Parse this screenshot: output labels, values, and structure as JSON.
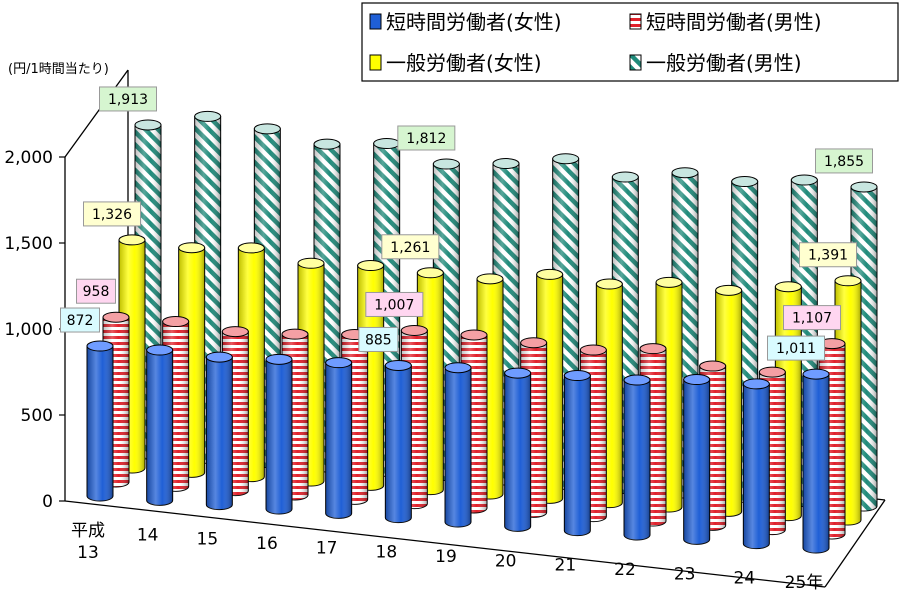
{
  "chart_data": {
    "type": "bar",
    "style": "3d-cylinder",
    "unit_label": "(円/1時間当たり)",
    "categories": [
      "平成\n13",
      "14",
      "15",
      "16",
      "17",
      "18",
      "19",
      "20",
      "21",
      "22",
      "23",
      "24",
      "25年"
    ],
    "ylim": [
      0,
      2000
    ],
    "yticks": [
      0,
      500,
      1000,
      1500,
      2000
    ],
    "ytick_labels": [
      "0",
      "500",
      "1,000",
      "1,500",
      "2,000"
    ],
    "grid": false,
    "legend_position": "top-right",
    "series": [
      {
        "name": "短時間労働者(女性)",
        "color": "#1f5fd6",
        "pattern": "solid",
        "values": [
          872,
          874,
          858,
          870,
          876,
          885,
          897,
          891,
          902,
          901,
          929,
          929,
          1011
        ]
      },
      {
        "name": "短時間労働者(男性)",
        "color": "#e0202a",
        "pattern": "horizontal-stripes",
        "values": [
          958,
          958,
          925,
          935,
          958,
          1007,
          1006,
          986,
          969,
          1002,
          926,
          916,
          1107
        ]
      },
      {
        "name": "一般労働者(女性)",
        "color": "#ffff00",
        "pattern": "solid",
        "values": [
          1326,
          1306,
          1330,
          1266,
          1278,
          1261,
          1251,
          1302,
          1271,
          1306,
          1285,
          1331,
          1391
        ]
      },
      {
        "name": "一般労働者(男性)",
        "color": "#1f8a7a",
        "pattern": "diagonal-stripes",
        "values": [
          1913,
          1988,
          1941,
          1877,
          1906,
          1812,
          1840,
          1893,
          1812,
          1862,
          1836,
          1870,
          1855
        ]
      }
    ],
    "data_labels": [
      {
        "series": 0,
        "index": 0,
        "text": "872",
        "color": "#d9fbff"
      },
      {
        "series": 0,
        "index": 5,
        "text": "885",
        "color": "#d9fbff"
      },
      {
        "series": 0,
        "index": 12,
        "text": "1,011",
        "color": "#d9fbff"
      },
      {
        "series": 1,
        "index": 0,
        "text": "958",
        "color": "#ffd6f0"
      },
      {
        "series": 1,
        "index": 5,
        "text": "1,007",
        "color": "#ffd6f0"
      },
      {
        "series": 1,
        "index": 12,
        "text": "1,107",
        "color": "#ffd6f0"
      },
      {
        "series": 2,
        "index": 0,
        "text": "1,326",
        "color": "#ffffd0"
      },
      {
        "series": 2,
        "index": 5,
        "text": "1,261",
        "color": "#ffffd0"
      },
      {
        "series": 2,
        "index": 12,
        "text": "1,391",
        "color": "#ffffd0"
      },
      {
        "series": 3,
        "index": 0,
        "text": "1,913",
        "color": "#d6f5d0"
      },
      {
        "series": 3,
        "index": 5,
        "text": "1,812",
        "color": "#d6f5d0"
      },
      {
        "series": 3,
        "index": 12,
        "text": "1,855",
        "color": "#d6f5d0"
      }
    ]
  }
}
